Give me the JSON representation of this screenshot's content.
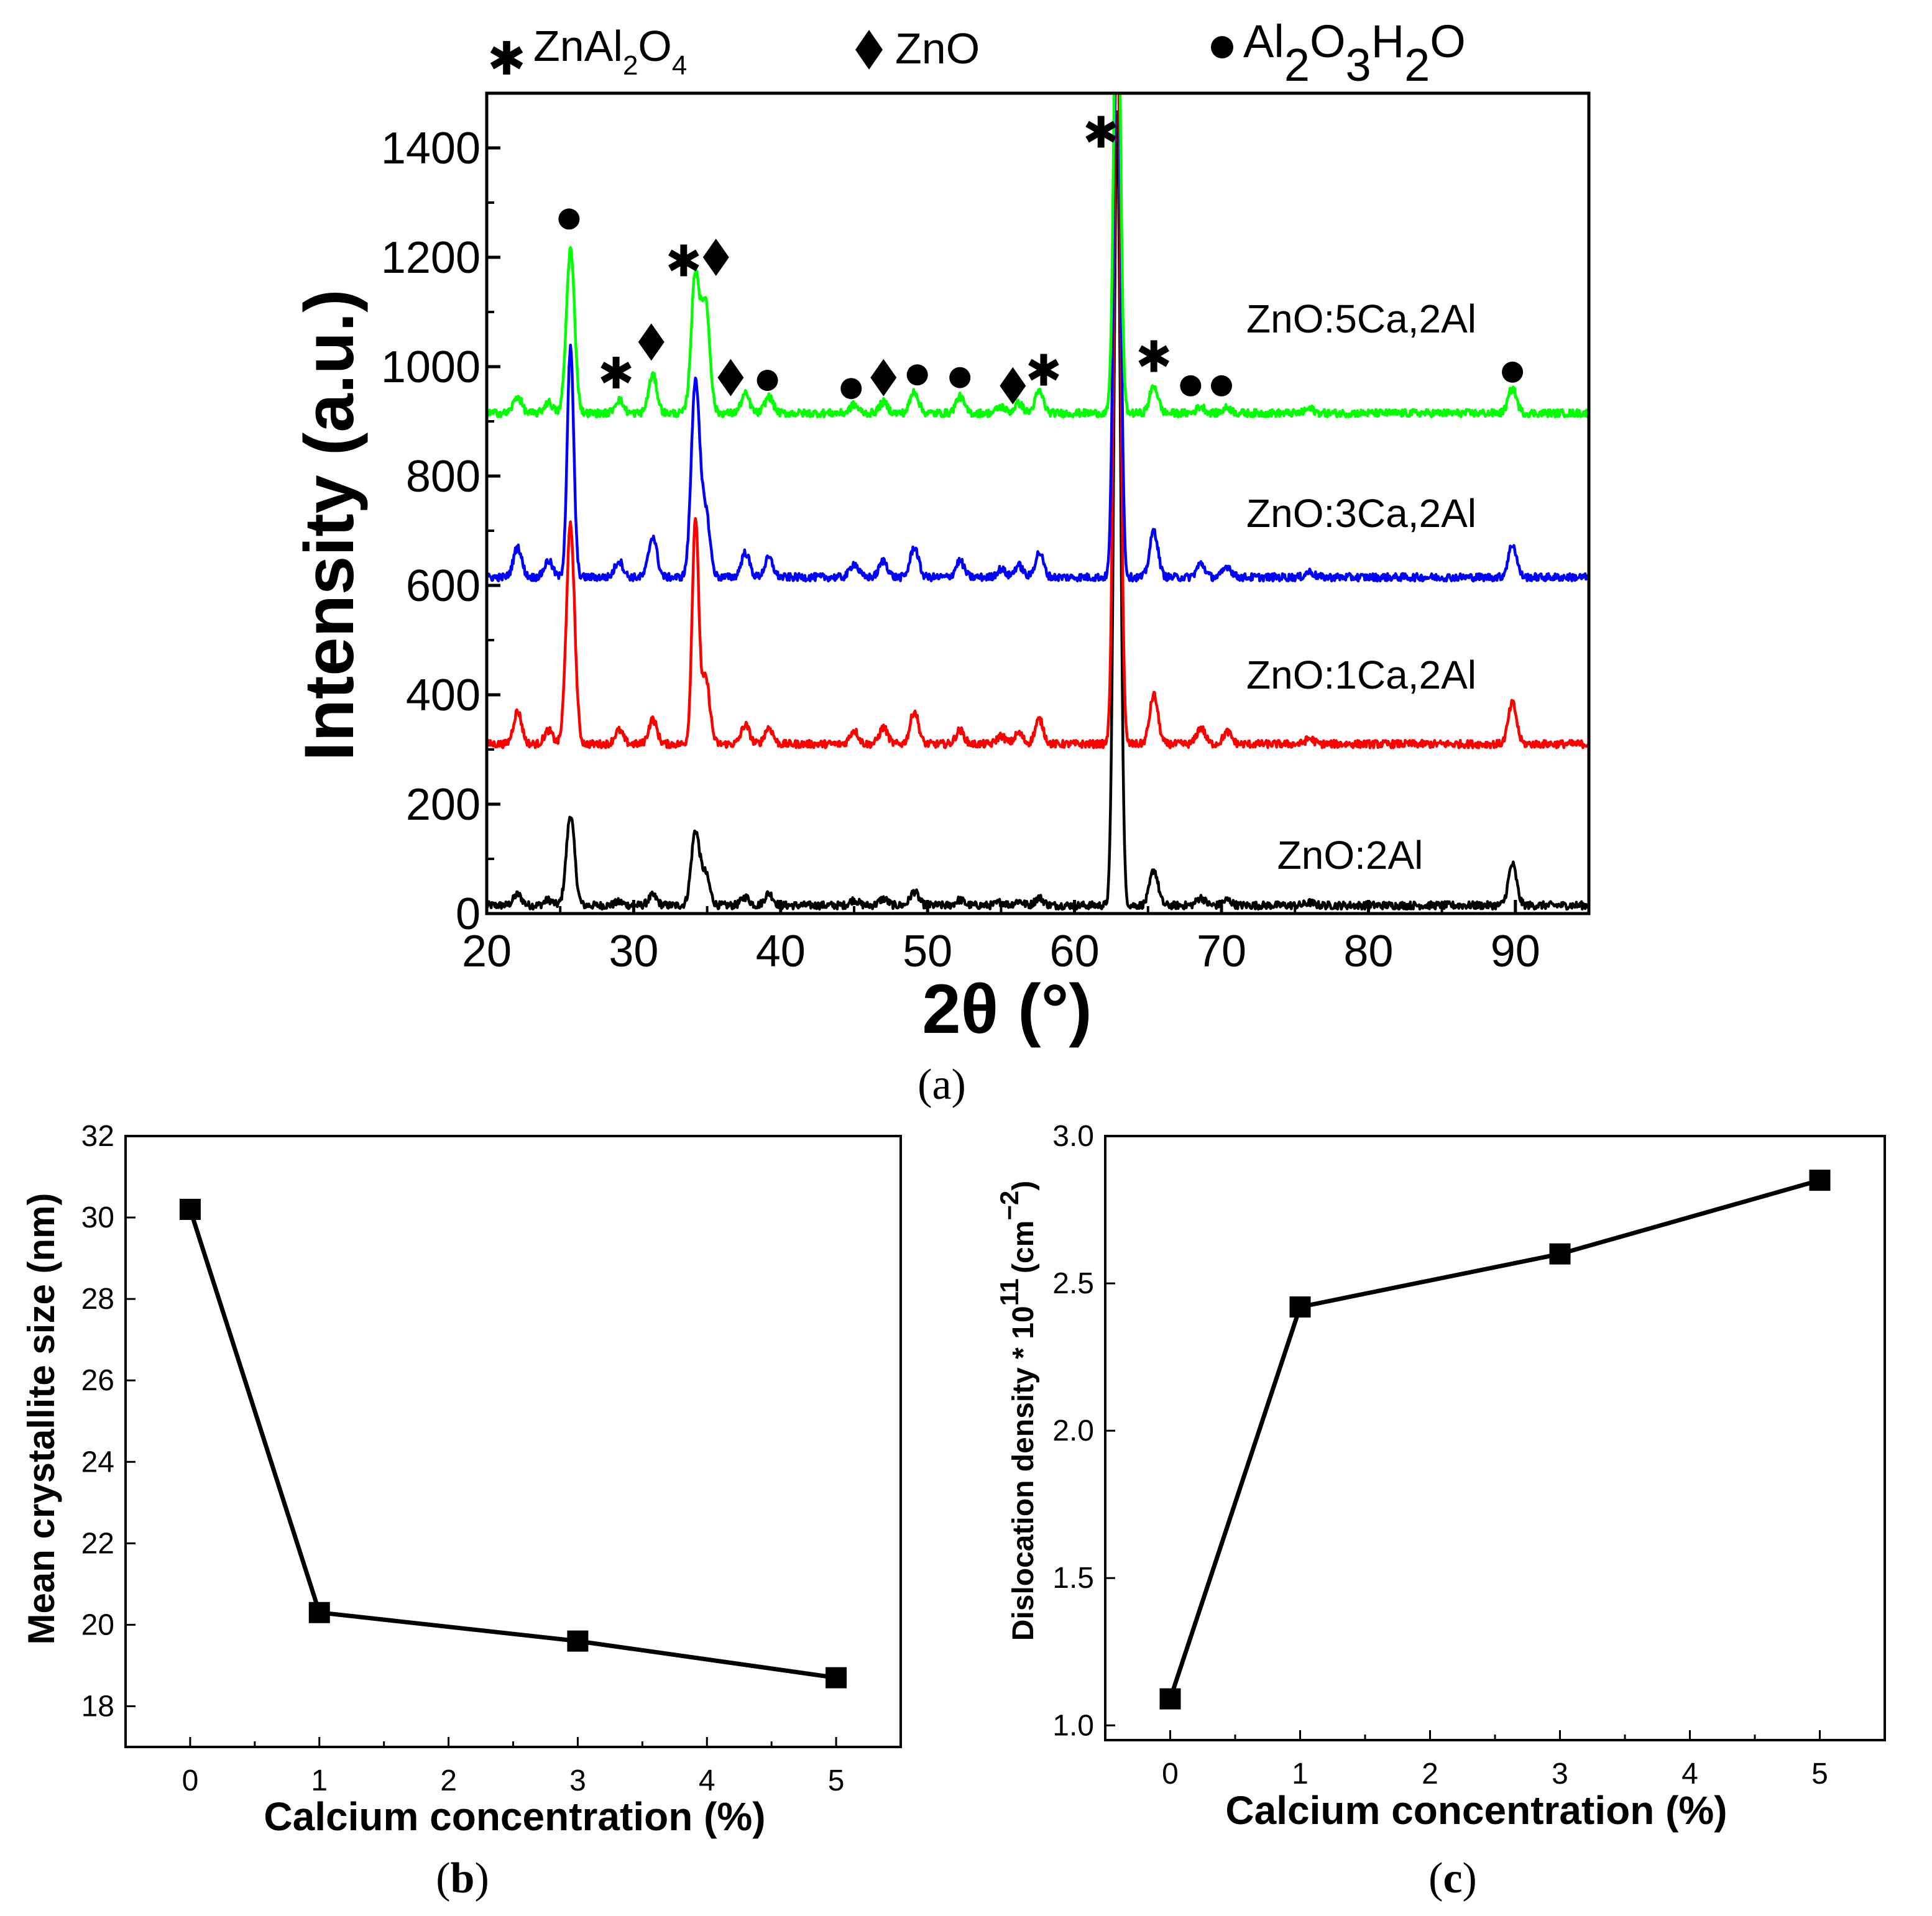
{
  "chart_data": [
    {
      "id": "a",
      "type": "line",
      "panel_label": "(a)",
      "panel_letter": "a",
      "xlabel": "2θ (°)",
      "ylabel": "Intensity (a.u.)",
      "xlim": [
        20,
        95
      ],
      "ylim": [
        0,
        1500
      ],
      "xticks": [
        20,
        30,
        40,
        50,
        60,
        70,
        80,
        90
      ],
      "yticks": [
        0,
        200,
        400,
        600,
        800,
        1000,
        1200,
        1400
      ],
      "legend": [
        {
          "symbol": "star",
          "text": "ZnAl",
          "sub1": "2",
          "text2": "O",
          "sub2": "4"
        },
        {
          "symbol": "diamond",
          "text": "ZnO"
        },
        {
          "symbol": "circle",
          "text": "Al",
          "sub1": "2",
          "text2": "O",
          "sub2": "3",
          "text3": "H",
          "sub3": "2",
          "text4": "O"
        }
      ],
      "peak_positions_2theta": [
        22.1,
        24.2,
        25.7,
        29.0,
        31.3,
        34.2,
        34.9,
        37.6,
        39.2,
        45.0,
        47.0,
        49.1,
        52.2,
        55.0,
        56.2,
        57.6,
        62.9,
        65.4,
        68.6,
        70.4,
        76.0,
        89.8
      ],
      "series": [
        {
          "name": "ZnO:2Al",
          "label": "ZnO:2Al",
          "color": "#000000",
          "baseline": 15,
          "peaks": [
            [
              22.1,
              20
            ],
            [
              24.2,
              10
            ],
            [
              25.7,
              165
            ],
            [
              29.0,
              6
            ],
            [
              31.3,
              18
            ],
            [
              34.2,
              135
            ],
            [
              34.9,
              55
            ],
            [
              37.6,
              15
            ],
            [
              39.2,
              22
            ],
            [
              45.0,
              10
            ],
            [
              47.0,
              12
            ],
            [
              49.1,
              25
            ],
            [
              52.2,
              10
            ],
            [
              55.0,
              6
            ],
            [
              56.2,
              8
            ],
            [
              57.6,
              14
            ],
            [
              62.9,
              1450
            ],
            [
              65.4,
              65
            ],
            [
              68.6,
              14
            ],
            [
              70.4,
              10
            ],
            [
              76.0,
              5
            ],
            [
              89.8,
              75
            ]
          ]
        },
        {
          "name": "ZnO:1Ca,2Al",
          "label": "ZnO:1Ca,2Al",
          "color": "#ff0000",
          "baseline": 310,
          "peaks": [
            [
              22.1,
              60
            ],
            [
              24.2,
              25
            ],
            [
              25.7,
              400
            ],
            [
              29.0,
              25
            ],
            [
              31.3,
              45
            ],
            [
              34.2,
              410
            ],
            [
              34.9,
              120
            ],
            [
              37.6,
              35
            ],
            [
              39.2,
              30
            ],
            [
              45.0,
              25
            ],
            [
              47.0,
              30
            ],
            [
              49.1,
              60
            ],
            [
              52.2,
              25
            ],
            [
              55.0,
              15
            ],
            [
              56.2,
              20
            ],
            [
              57.6,
              45
            ],
            [
              62.9,
              1400
            ],
            [
              65.4,
              90
            ],
            [
              68.6,
              30
            ],
            [
              70.4,
              22
            ],
            [
              76.0,
              10
            ],
            [
              89.8,
              75
            ]
          ]
        },
        {
          "name": "ZnO:3Ca,2Al",
          "label": "ZnO:3Ca,2Al",
          "color": "#0000ff",
          "baseline": 615,
          "peaks": [
            [
              22.1,
              55
            ],
            [
              24.2,
              30
            ],
            [
              25.7,
              420
            ],
            [
              29.0,
              30
            ],
            [
              31.3,
              75
            ],
            [
              34.2,
              360
            ],
            [
              34.9,
              120
            ],
            [
              37.6,
              45
            ],
            [
              39.2,
              35
            ],
            [
              45.0,
              25
            ],
            [
              47.0,
              30
            ],
            [
              49.1,
              55
            ],
            [
              52.2,
              30
            ],
            [
              55.0,
              15
            ],
            [
              56.2,
              22
            ],
            [
              57.6,
              45
            ],
            [
              62.9,
              1200
            ],
            [
              65.4,
              85
            ],
            [
              68.6,
              25
            ],
            [
              70.4,
              20
            ],
            [
              76.0,
              10
            ],
            [
              89.8,
              60
            ]
          ]
        },
        {
          "name": "ZnO:5Ca,2Al",
          "label": "ZnO:5Ca,2Al",
          "color": "#00ff00",
          "baseline": 915,
          "peaks": [
            [
              22.1,
              30
            ],
            [
              24.2,
              20
            ],
            [
              25.7,
              300
            ],
            [
              29.0,
              25
            ],
            [
              31.3,
              70
            ],
            [
              34.2,
              255
            ],
            [
              34.9,
              200
            ],
            [
              37.6,
              35
            ],
            [
              39.2,
              30
            ],
            [
              45.0,
              15
            ],
            [
              47.0,
              20
            ],
            [
              49.1,
              40
            ],
            [
              52.2,
              30
            ],
            [
              55.0,
              12
            ],
            [
              56.2,
              18
            ],
            [
              57.6,
              40
            ],
            [
              62.9,
              900
            ],
            [
              65.4,
              50
            ],
            [
              68.6,
              12
            ],
            [
              70.4,
              10
            ],
            [
              76.0,
              8
            ],
            [
              89.8,
              45
            ]
          ]
        }
      ],
      "phase_markers": [
        {
          "symbol": "circle",
          "x": 25.6,
          "y": 1270
        },
        {
          "symbol": "star",
          "x": 28.8,
          "y": 990
        },
        {
          "symbol": "diamond",
          "x": 31.2,
          "y": 1045
        },
        {
          "symbol": "star",
          "x": 33.4,
          "y": 1195
        },
        {
          "symbol": "diamond",
          "x": 35.6,
          "y": 1200
        },
        {
          "symbol": "diamond",
          "x": 36.6,
          "y": 980
        },
        {
          "symbol": "circle",
          "x": 39.1,
          "y": 975
        },
        {
          "symbol": "circle",
          "x": 44.8,
          "y": 960
        },
        {
          "symbol": "diamond",
          "x": 47.0,
          "y": 980
        },
        {
          "symbol": "circle",
          "x": 49.3,
          "y": 985
        },
        {
          "symbol": "circle",
          "x": 52.2,
          "y": 980
        },
        {
          "symbol": "diamond",
          "x": 55.8,
          "y": 965
        },
        {
          "symbol": "star",
          "x": 57.9,
          "y": 995
        },
        {
          "symbol": "star",
          "x": 61.8,
          "y": 1430
        },
        {
          "symbol": "star",
          "x": 65.4,
          "y": 1020
        },
        {
          "symbol": "circle",
          "x": 67.9,
          "y": 965
        },
        {
          "symbol": "circle",
          "x": 70.0,
          "y": 965
        },
        {
          "symbol": "circle",
          "x": 89.8,
          "y": 990
        }
      ]
    },
    {
      "id": "b",
      "type": "line",
      "panel_label": "(b)",
      "panel_letter": "b",
      "xlabel": "Calcium concentration (%)",
      "ylabel": "Mean crystallite size (nm)",
      "xlim": [
        -0.5,
        5.5
      ],
      "ylim": [
        17,
        32
      ],
      "xticks": [
        0,
        1,
        2,
        3,
        4,
        5
      ],
      "yticks": [
        18,
        20,
        22,
        24,
        26,
        28,
        30,
        32
      ],
      "x": [
        0,
        1,
        3,
        5
      ],
      "series": [
        {
          "name": "Mean crystallite size",
          "values": [
            30.2,
            20.3,
            19.6,
            18.7
          ]
        }
      ]
    },
    {
      "id": "c",
      "type": "line",
      "panel_label": "(c)",
      "panel_letter": "c",
      "xlabel": "Calcium concentration (%)",
      "ylabel": "Dislocation density * 10",
      "ylabel_sup": "11",
      "ylabel_unit": "(cm",
      "ylabel_unit_sup": "−2",
      "ylabel_unit_close": ")",
      "xlim": [
        -0.5,
        5.5
      ],
      "ylim": [
        0.95,
        3.0
      ],
      "xticks": [
        0,
        1,
        2,
        3,
        4,
        5
      ],
      "yticks": [
        "1.0",
        "1.5",
        "2.0",
        "2.5",
        "3.0"
      ],
      "x": [
        0,
        1,
        3,
        5
      ],
      "series": [
        {
          "name": "Dislocation density",
          "values": [
            1.09,
            2.42,
            2.6,
            2.85
          ]
        }
      ]
    }
  ]
}
